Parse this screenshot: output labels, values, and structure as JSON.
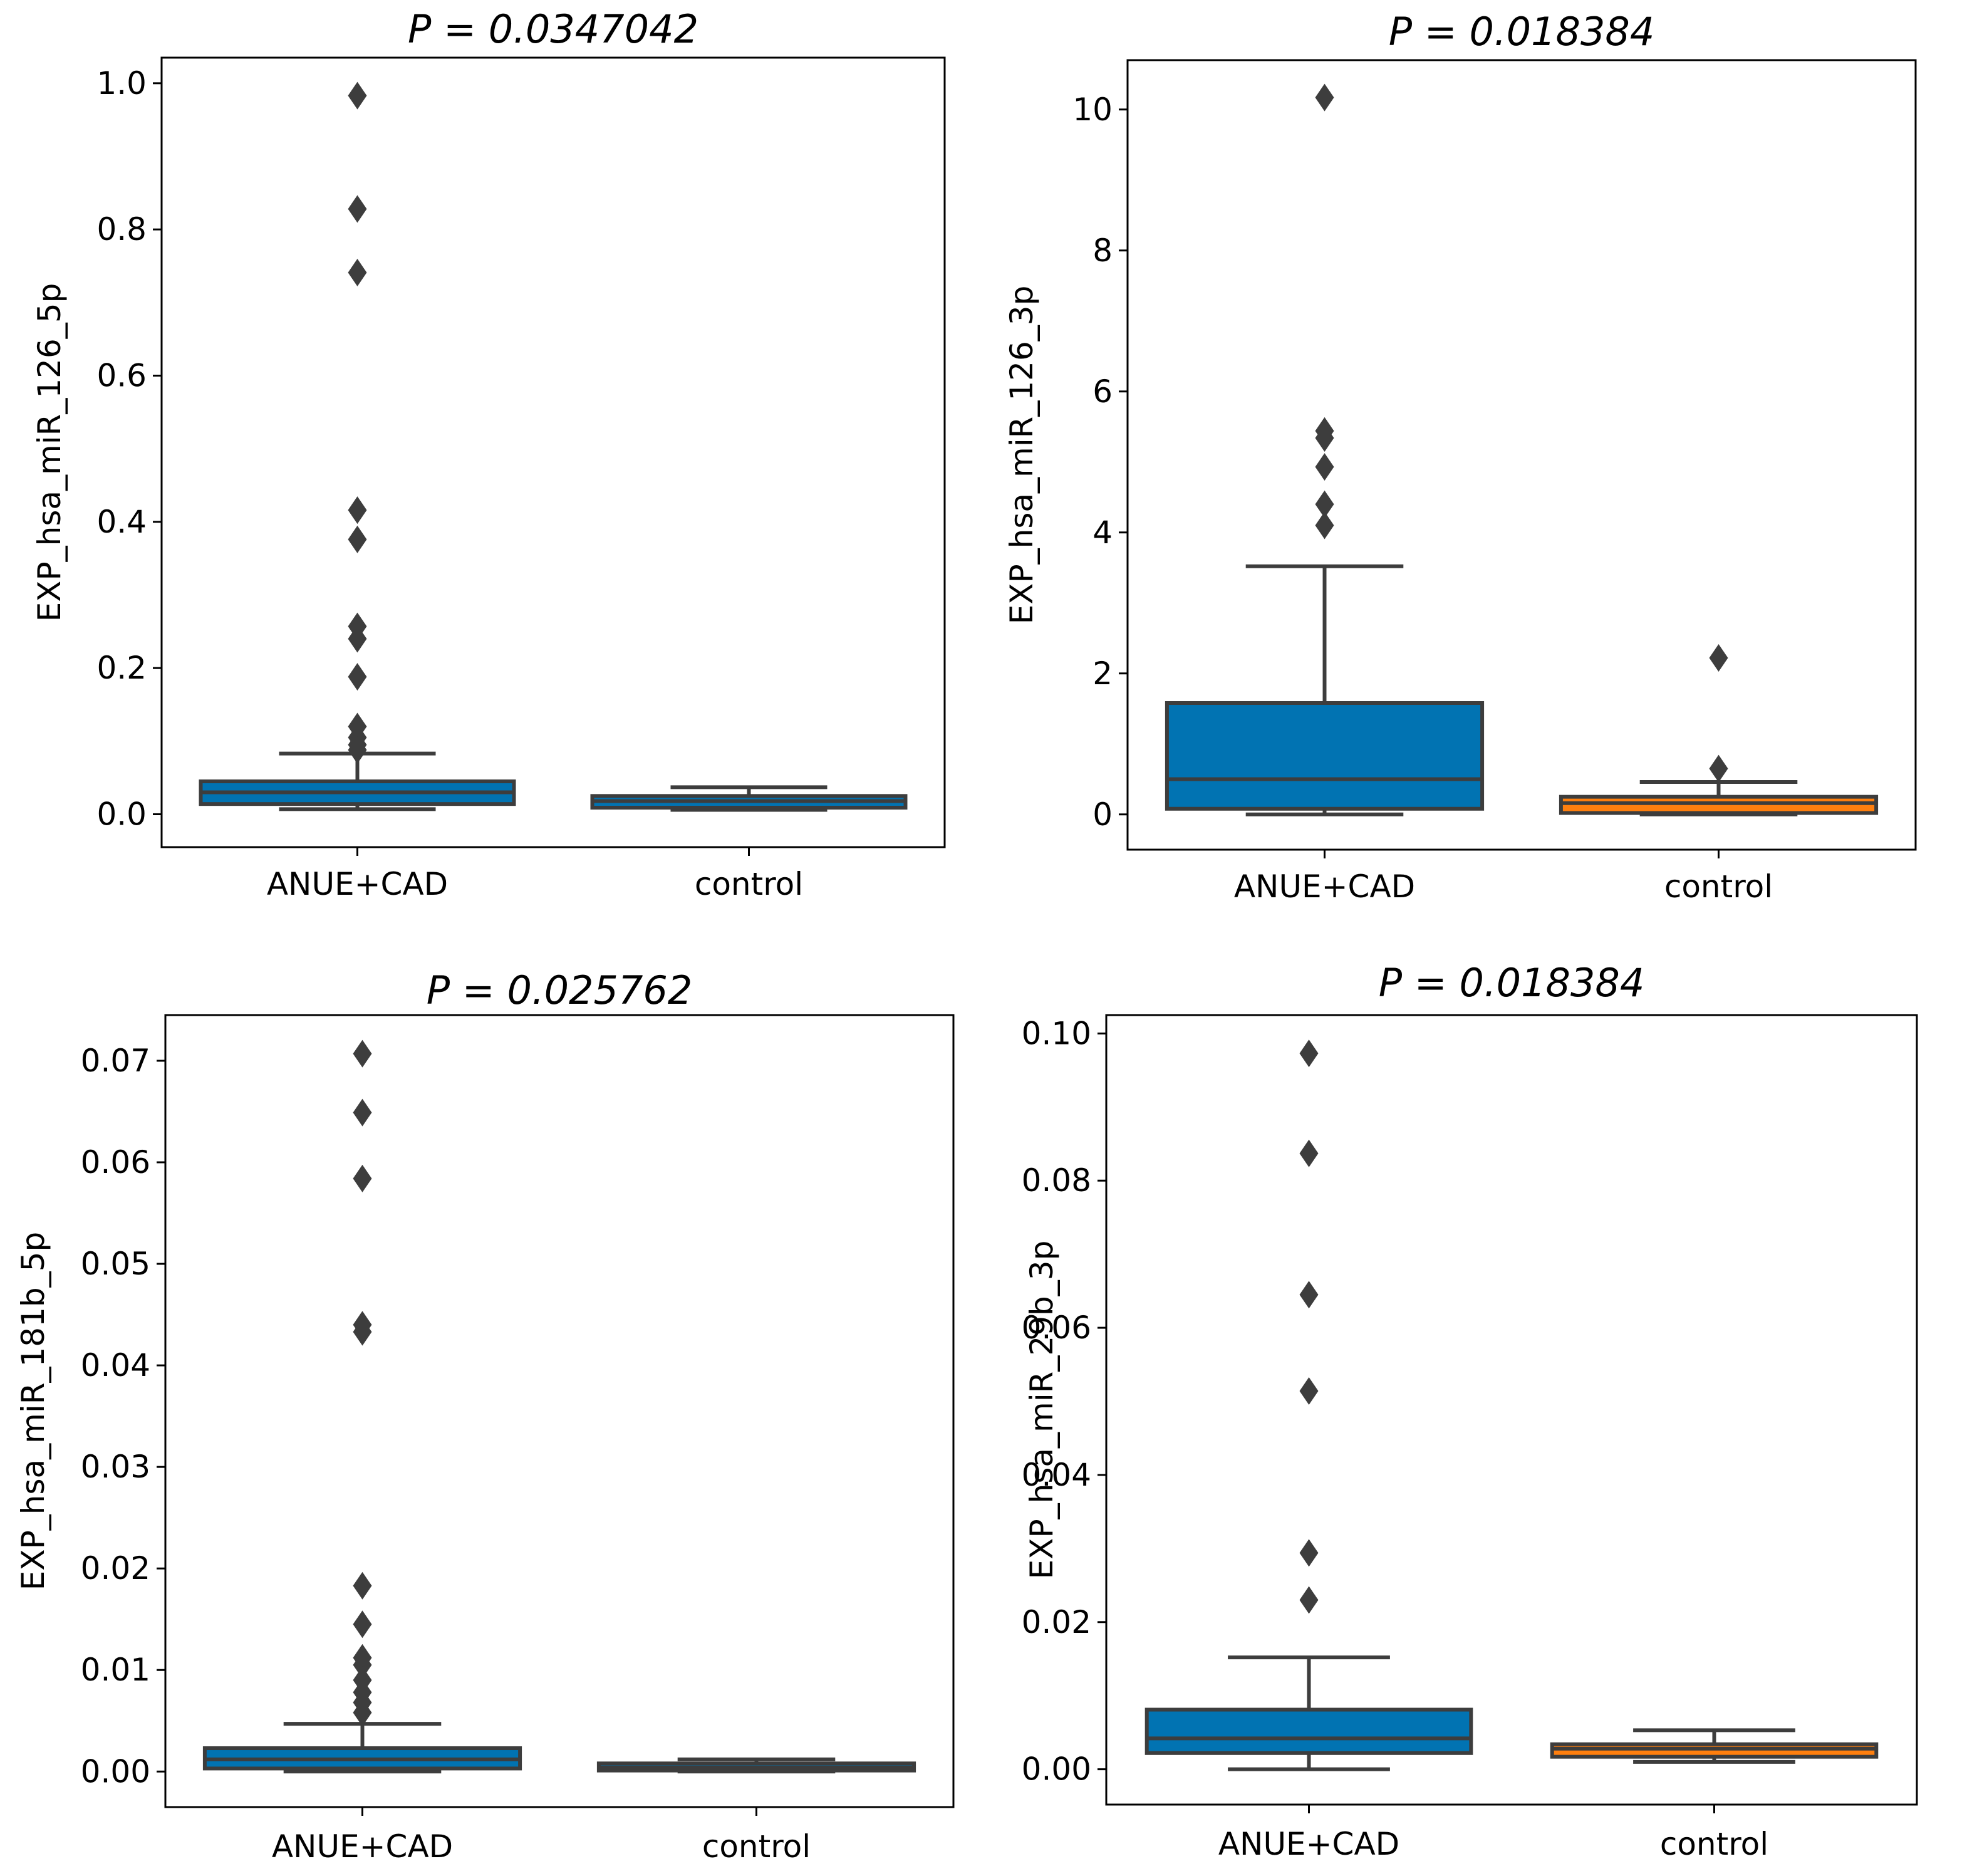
{
  "colors": {
    "box_blue": "#0173b2",
    "box_orange": "#ff7f0e",
    "line": "#3d3d3d",
    "axis": "#000000"
  },
  "chart_data": [
    {
      "type": "box",
      "title": "P = 0.0347042",
      "ylabel": "EXP_hsa_miR_126_5p",
      "ylim": [
        -0.045,
        1.035
      ],
      "yticks": [
        0.0,
        0.2,
        0.4,
        0.6,
        0.8,
        1.0
      ],
      "ytick_labels": [
        "0.0",
        "0.2",
        "0.4",
        "0.6",
        "0.8",
        "1.0"
      ],
      "categories": [
        "ANUE+CAD",
        "control"
      ],
      "boxes": [
        {
          "category": "ANUE+CAD",
          "color": "blue",
          "whisker_low": 0.007,
          "q1": 0.014,
          "median": 0.03,
          "q3": 0.045,
          "whisker_high": 0.083,
          "outliers": [
            0.983,
            0.828,
            0.741,
            0.416,
            0.376,
            0.257,
            0.24,
            0.188,
            0.12,
            0.105,
            0.095,
            0.088
          ]
        },
        {
          "category": "control",
          "color": "blue",
          "whisker_low": 0.006,
          "q1": 0.009,
          "median": 0.018,
          "q3": 0.025,
          "whisker_high": 0.037,
          "outliers": []
        }
      ]
    },
    {
      "type": "box",
      "title": "P = 0.018384",
      "ylabel": "EXP_hsa_miR_126_3p",
      "ylim": [
        -0.5,
        10.7
      ],
      "yticks": [
        0,
        2,
        4,
        6,
        8,
        10
      ],
      "ytick_labels": [
        "0",
        "2",
        "4",
        "6",
        "8",
        "10"
      ],
      "categories": [
        "ANUE+CAD",
        "control"
      ],
      "boxes": [
        {
          "category": "ANUE+CAD",
          "color": "blue",
          "whisker_low": 0.0,
          "q1": 0.08,
          "median": 0.5,
          "q3": 1.58,
          "whisker_high": 3.52,
          "outliers": [
            10.17,
            5.44,
            5.34,
            4.93,
            4.4,
            4.1
          ]
        },
        {
          "category": "control",
          "color": "orange",
          "whisker_low": 0.0,
          "q1": 0.02,
          "median": 0.16,
          "q3": 0.25,
          "whisker_high": 0.46,
          "outliers": [
            2.22,
            0.65
          ]
        }
      ]
    },
    {
      "type": "box",
      "title": "P = 0.025762",
      "ylabel": "EXP_hsa_miR_181b_5p",
      "ylim": [
        -0.0035,
        0.0745
      ],
      "yticks": [
        0.0,
        0.01,
        0.02,
        0.03,
        0.04,
        0.05,
        0.06,
        0.07
      ],
      "ytick_labels": [
        "0.00",
        "0.01",
        "0.02",
        "0.03",
        "0.04",
        "0.05",
        "0.06",
        "0.07"
      ],
      "categories": [
        "ANUE+CAD",
        "control"
      ],
      "boxes": [
        {
          "category": "ANUE+CAD",
          "color": "blue",
          "whisker_low": 0.0,
          "q1": 0.0003,
          "median": 0.0012,
          "q3": 0.0023,
          "whisker_high": 0.0047,
          "outliers": [
            0.0707,
            0.0649,
            0.0584,
            0.044,
            0.0433,
            0.0183,
            0.0145,
            0.0112,
            0.0105,
            0.009,
            0.0078,
            0.0068,
            0.0058
          ]
        },
        {
          "category": "control",
          "color": "blue",
          "whisker_low": 0.0,
          "q1": 0.0001,
          "median": 0.0004,
          "q3": 0.0008,
          "whisker_high": 0.0012,
          "outliers": []
        }
      ]
    },
    {
      "type": "box",
      "title": "P = 0.018384",
      "ylabel": "EXP_hsa_miR_29b_3p",
      "ylim": [
        -0.0048,
        0.1025
      ],
      "yticks": [
        0.0,
        0.02,
        0.04,
        0.06,
        0.08,
        0.1
      ],
      "ytick_labels": [
        "0.00",
        "0.02",
        "0.04",
        "0.06",
        "0.08",
        "0.10"
      ],
      "categories": [
        "ANUE+CAD",
        "control"
      ],
      "boxes": [
        {
          "category": "ANUE+CAD",
          "color": "blue",
          "whisker_low": 0.0,
          "q1": 0.0022,
          "median": 0.0042,
          "q3": 0.0081,
          "whisker_high": 0.0152,
          "outliers": [
            0.0973,
            0.0837,
            0.0645,
            0.0514,
            0.0294,
            0.023
          ]
        },
        {
          "category": "control",
          "color": "orange",
          "whisker_low": 0.001,
          "q1": 0.0017,
          "median": 0.0028,
          "q3": 0.0034,
          "whisker_high": 0.0053,
          "outliers": []
        }
      ]
    }
  ]
}
